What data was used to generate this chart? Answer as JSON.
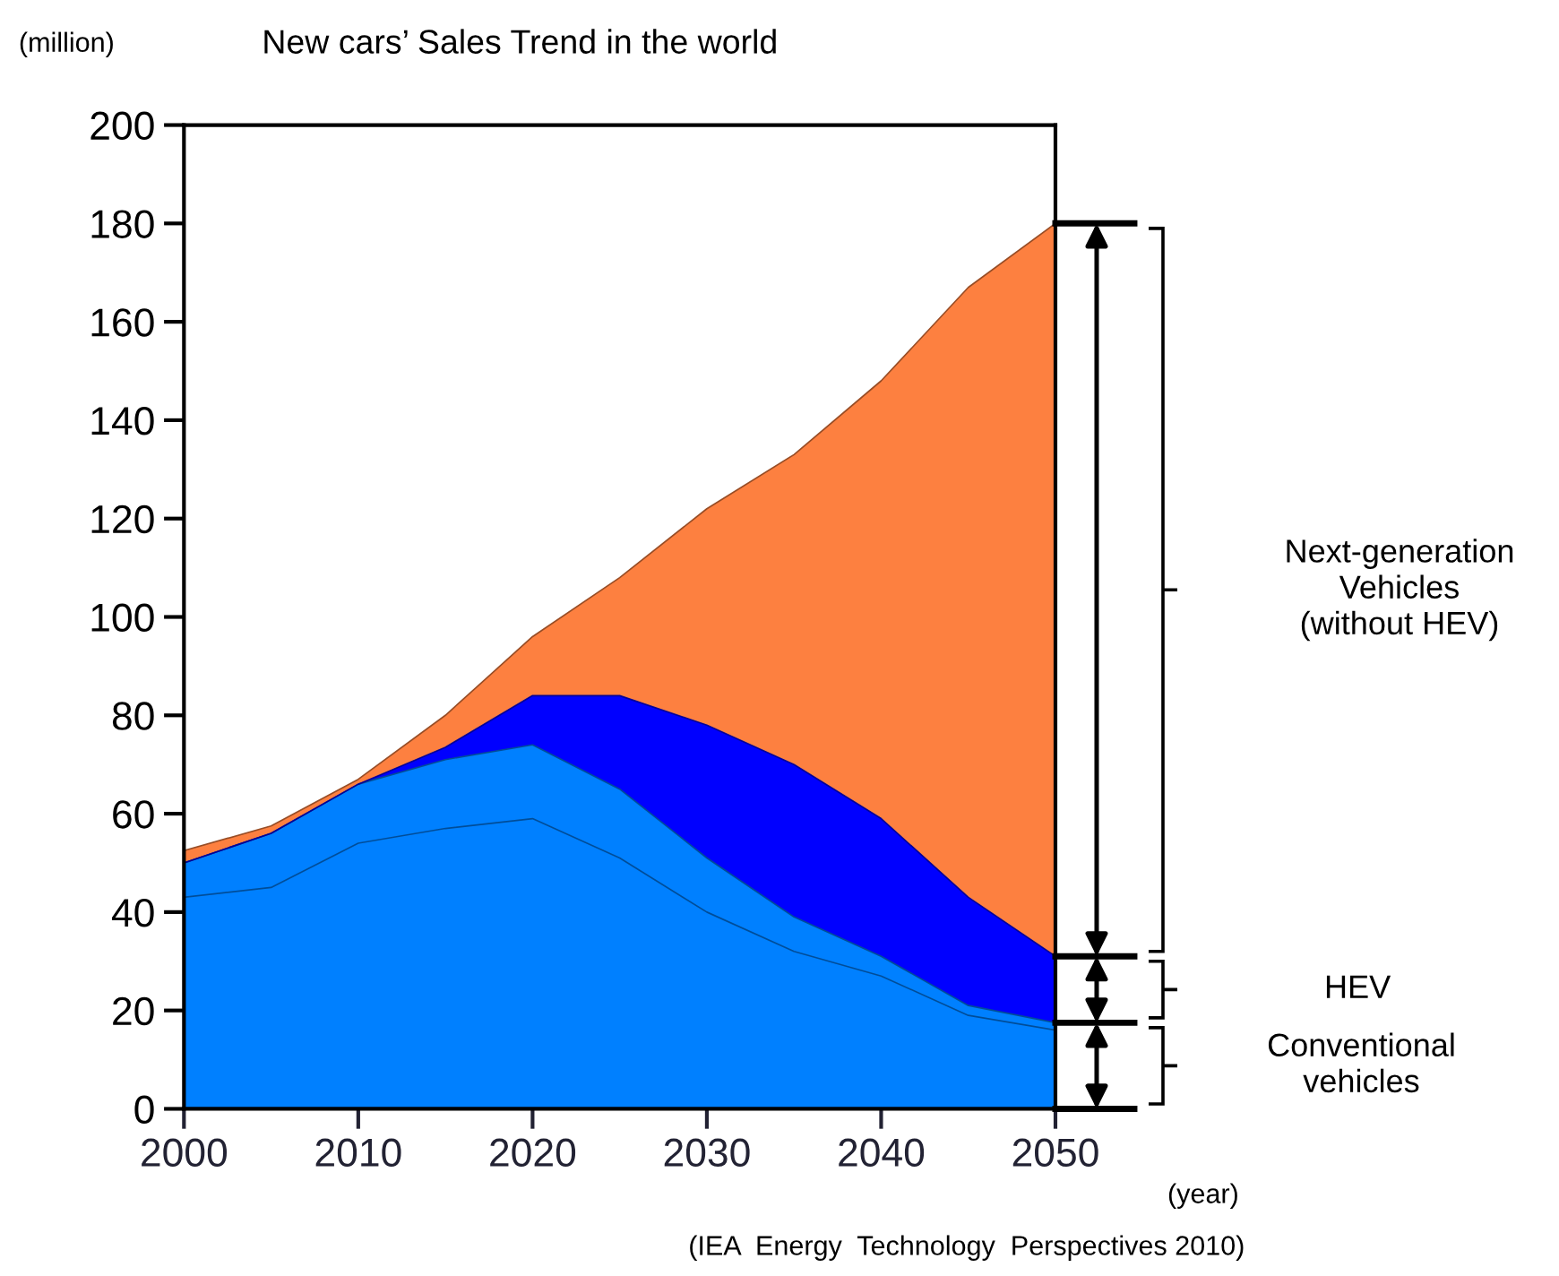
{
  "chart_data": {
    "type": "area",
    "stacked": true,
    "title": "New cars’ Sales Trend in the world",
    "ylabel": "(million)",
    "xlabel": "(year)",
    "x": [
      2000,
      2005,
      2010,
      2015,
      2020,
      2025,
      2030,
      2035,
      2040,
      2045,
      2050
    ],
    "series": [
      {
        "color": "#0080ff",
        "values": [
          43,
          45,
          54,
          57,
          59,
          51,
          40,
          32,
          27,
          19,
          16
        ]
      },
      {
        "color": "#0080ff",
        "values": [
          7,
          11,
          12,
          14,
          15,
          14,
          11,
          7,
          4,
          2,
          1.5
        ]
      },
      {
        "color": "#0000ff",
        "values": [
          0,
          0,
          0,
          2.5,
          10,
          19,
          27,
          31,
          28,
          22,
          13.5
        ]
      },
      {
        "color": "#fd8040",
        "values": [
          2.5,
          1.5,
          1,
          6.5,
          12,
          24,
          44,
          63,
          89,
          124,
          149
        ]
      }
    ],
    "xlim": [
      2000,
      2050
    ],
    "ylim": [
      0,
      200
    ],
    "xticks": [
      2000,
      2010,
      2020,
      2030,
      2040,
      2050
    ],
    "yticks": [
      0,
      20,
      40,
      60,
      80,
      100,
      120,
      140,
      160,
      180,
      200
    ],
    "grid": false,
    "annotations": [
      "Next-generation\nVehicles\n(without HEV)",
      "HEV",
      "Conventional\nvehicles",
      "(IEA  Energy  Technology  Perspectives 2010)"
    ]
  }
}
